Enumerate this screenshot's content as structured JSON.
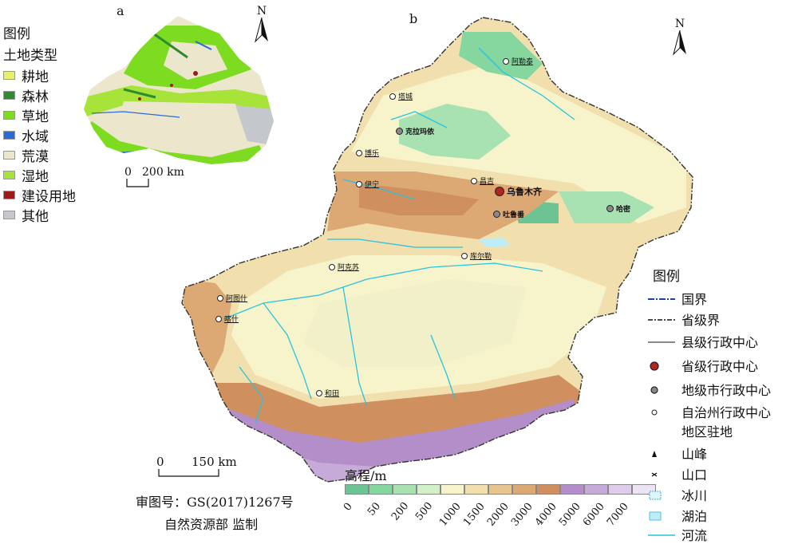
{
  "panel_a": {
    "label": "a",
    "legend_title": "图例",
    "legend_subtitle": "土地类型",
    "land_types": [
      {
        "name": "耕地",
        "color": "#e8f06a"
      },
      {
        "name": "森林",
        "color": "#2e8b2e"
      },
      {
        "name": "草地",
        "color": "#7ddc1f"
      },
      {
        "name": "水域",
        "color": "#2a6bd8"
      },
      {
        "name": "荒漠",
        "color": "#ece6cc"
      },
      {
        "name": "湿地",
        "color": "#a8e33a"
      },
      {
        "name": "建设用地",
        "color": "#a01818"
      },
      {
        "name": "其他",
        "color": "#c4c8cc"
      }
    ],
    "scale_zero": "0",
    "scale_value": "200 km",
    "north": "N"
  },
  "panel_b": {
    "label": "b",
    "north": "N",
    "cities": [
      {
        "name": "阿勒泰",
        "type": "prefecture"
      },
      {
        "name": "塔城",
        "type": "prefecture"
      },
      {
        "name": "克拉玛依",
        "type": "city"
      },
      {
        "name": "博乐",
        "type": "prefecture"
      },
      {
        "name": "伊宁",
        "type": "prefecture"
      },
      {
        "name": "昌吉",
        "type": "prefecture"
      },
      {
        "name": "乌鲁木齐",
        "type": "capital"
      },
      {
        "name": "吐鲁番",
        "type": "city"
      },
      {
        "name": "哈密",
        "type": "city"
      },
      {
        "name": "库尔勒",
        "type": "prefecture"
      },
      {
        "name": "阿克苏",
        "type": "prefecture"
      },
      {
        "name": "阿图什",
        "type": "prefecture"
      },
      {
        "name": "喀什",
        "type": "prefecture"
      },
      {
        "name": "和田",
        "type": "prefecture"
      }
    ],
    "scale_zero": "0",
    "scale_value": "150 km",
    "approval": "审图号：GS(2017)1267号",
    "supervisor": "自然资源部 监制",
    "legend_title": "图例",
    "legend_items": [
      {
        "label": "国界",
        "symbol": "national-border"
      },
      {
        "label": "省级界",
        "symbol": "provincial-border"
      },
      {
        "label": "县级行政中心",
        "symbol": "county-line"
      },
      {
        "label": "省级行政中心",
        "symbol": "capital-dot"
      },
      {
        "label": "地级市行政中心",
        "symbol": "city-dot"
      },
      {
        "label": "自治州行政中心",
        "symbol": "prefecture-dot"
      },
      {
        "label": "地区驻地",
        "symbol": "none"
      },
      {
        "label": "山峰",
        "symbol": "peak"
      },
      {
        "label": "山口",
        "symbol": "pass"
      },
      {
        "label": "冰川",
        "symbol": "glacier"
      },
      {
        "label": "湖泊",
        "symbol": "lake"
      },
      {
        "label": "河流",
        "symbol": "river"
      }
    ],
    "elevation_title": "高程/m",
    "elevation_classes": [
      {
        "tick": "0",
        "color": "#6cc495"
      },
      {
        "tick": "50",
        "color": "#86d6a0"
      },
      {
        "tick": "200",
        "color": "#a8e2b3"
      },
      {
        "tick": "500",
        "color": "#d4f0c8"
      },
      {
        "tick": "1000",
        "color": "#f7f4cc"
      },
      {
        "tick": "1500",
        "color": "#f2dfae"
      },
      {
        "tick": "2000",
        "color": "#e8c48e"
      },
      {
        "tick": "3000",
        "color": "#dca873"
      },
      {
        "tick": "4000",
        "color": "#cf8f5e"
      },
      {
        "tick": "5000",
        "color": "#b48ec8"
      },
      {
        "tick": "6000",
        "color": "#c6aad8"
      },
      {
        "tick": "7000",
        "color": "#ddcdea"
      },
      {
        "tick": "",
        "color": "#ece4f4"
      }
    ]
  }
}
